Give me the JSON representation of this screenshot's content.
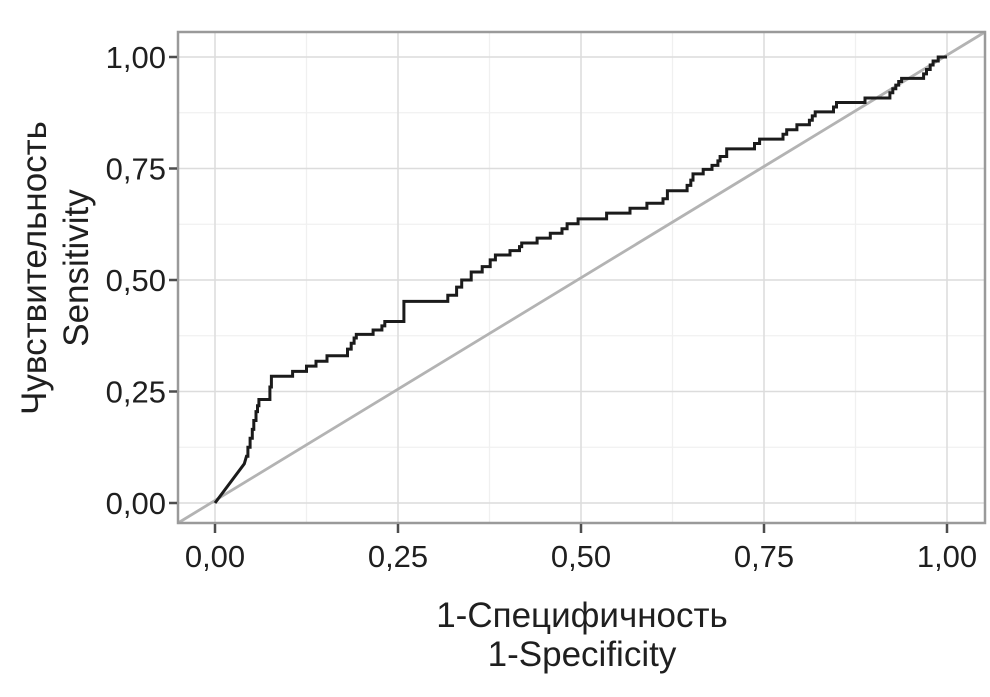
{
  "chart_data": {
    "type": "line",
    "subtype": "roc_curve",
    "title": "",
    "xlabel_ru": "1-Специфичность",
    "xlabel_en": "1-Specificity",
    "ylabel_ru": "Чувствительность",
    "ylabel_en": "Sensitivity",
    "x_tick_labels": [
      "0,00",
      "0,25",
      "0,50",
      "0,75",
      "1,00"
    ],
    "x_tick_values": [
      0,
      0.25,
      0.5,
      0.75,
      1
    ],
    "y_tick_labels": [
      "0,00",
      "0,25",
      "0,50",
      "0,75",
      "1,00"
    ],
    "y_tick_values": [
      0,
      0.25,
      0.5,
      0.75,
      1
    ],
    "minor_grid_values": [
      0.125,
      0.375,
      0.625,
      0.875
    ],
    "xlim": [
      -0.05,
      1.05
    ],
    "ylim": [
      -0.045,
      1.055
    ],
    "grid": "on",
    "legend_position": "none",
    "reference_line": {
      "name": "chance-diagonal",
      "from": [
        0,
        0
      ],
      "to": [
        1,
        1
      ]
    },
    "series": [
      {
        "name": "ROC curve",
        "points": [
          [
            0.0,
            0.0
          ],
          [
            0.04,
            0.088
          ],
          [
            0.043,
            0.105
          ],
          [
            0.045,
            0.105
          ],
          [
            0.045,
            0.125
          ],
          [
            0.048,
            0.125
          ],
          [
            0.048,
            0.145
          ],
          [
            0.051,
            0.145
          ],
          [
            0.051,
            0.165
          ],
          [
            0.053,
            0.165
          ],
          [
            0.053,
            0.185
          ],
          [
            0.056,
            0.185
          ],
          [
            0.056,
            0.205
          ],
          [
            0.058,
            0.205
          ],
          [
            0.058,
            0.218
          ],
          [
            0.06,
            0.218
          ],
          [
            0.06,
            0.232
          ],
          [
            0.075,
            0.232
          ],
          [
            0.075,
            0.26
          ],
          [
            0.077,
            0.26
          ],
          [
            0.077,
            0.284
          ],
          [
            0.106,
            0.284
          ],
          [
            0.106,
            0.295
          ],
          [
            0.125,
            0.295
          ],
          [
            0.125,
            0.307
          ],
          [
            0.138,
            0.307
          ],
          [
            0.138,
            0.318
          ],
          [
            0.153,
            0.318
          ],
          [
            0.153,
            0.33
          ],
          [
            0.181,
            0.33
          ],
          [
            0.181,
            0.345
          ],
          [
            0.186,
            0.345
          ],
          [
            0.186,
            0.358
          ],
          [
            0.19,
            0.358
          ],
          [
            0.19,
            0.37
          ],
          [
            0.193,
            0.37
          ],
          [
            0.193,
            0.378
          ],
          [
            0.216,
            0.378
          ],
          [
            0.216,
            0.388
          ],
          [
            0.228,
            0.388
          ],
          [
            0.228,
            0.397
          ],
          [
            0.232,
            0.397
          ],
          [
            0.232,
            0.407
          ],
          [
            0.258,
            0.407
          ],
          [
            0.258,
            0.452
          ],
          [
            0.318,
            0.452
          ],
          [
            0.318,
            0.466
          ],
          [
            0.33,
            0.466
          ],
          [
            0.33,
            0.484
          ],
          [
            0.337,
            0.484
          ],
          [
            0.337,
            0.5
          ],
          [
            0.35,
            0.5
          ],
          [
            0.35,
            0.518
          ],
          [
            0.365,
            0.518
          ],
          [
            0.365,
            0.53
          ],
          [
            0.376,
            0.53
          ],
          [
            0.376,
            0.545
          ],
          [
            0.383,
            0.545
          ],
          [
            0.383,
            0.556
          ],
          [
            0.403,
            0.556
          ],
          [
            0.403,
            0.566
          ],
          [
            0.416,
            0.566
          ],
          [
            0.416,
            0.575
          ],
          [
            0.419,
            0.575
          ],
          [
            0.419,
            0.583
          ],
          [
            0.44,
            0.583
          ],
          [
            0.44,
            0.594
          ],
          [
            0.458,
            0.594
          ],
          [
            0.458,
            0.605
          ],
          [
            0.474,
            0.605
          ],
          [
            0.474,
            0.615
          ],
          [
            0.481,
            0.615
          ],
          [
            0.481,
            0.626
          ],
          [
            0.496,
            0.626
          ],
          [
            0.496,
            0.637
          ],
          [
            0.535,
            0.637
          ],
          [
            0.535,
            0.65
          ],
          [
            0.567,
            0.65
          ],
          [
            0.567,
            0.661
          ],
          [
            0.59,
            0.661
          ],
          [
            0.59,
            0.672
          ],
          [
            0.612,
            0.672
          ],
          [
            0.612,
            0.682
          ],
          [
            0.618,
            0.682
          ],
          [
            0.618,
            0.7
          ],
          [
            0.645,
            0.7
          ],
          [
            0.645,
            0.712
          ],
          [
            0.65,
            0.712
          ],
          [
            0.65,
            0.724
          ],
          [
            0.653,
            0.724
          ],
          [
            0.653,
            0.738
          ],
          [
            0.667,
            0.738
          ],
          [
            0.667,
            0.748
          ],
          [
            0.679,
            0.748
          ],
          [
            0.679,
            0.757
          ],
          [
            0.687,
            0.757
          ],
          [
            0.687,
            0.767
          ],
          [
            0.69,
            0.767
          ],
          [
            0.69,
            0.777
          ],
          [
            0.699,
            0.777
          ],
          [
            0.699,
            0.794
          ],
          [
            0.737,
            0.794
          ],
          [
            0.737,
            0.806
          ],
          [
            0.744,
            0.806
          ],
          [
            0.744,
            0.816
          ],
          [
            0.776,
            0.816
          ],
          [
            0.776,
            0.827
          ],
          [
            0.781,
            0.827
          ],
          [
            0.781,
            0.837
          ],
          [
            0.795,
            0.837
          ],
          [
            0.795,
            0.848
          ],
          [
            0.812,
            0.848
          ],
          [
            0.812,
            0.858
          ],
          [
            0.816,
            0.858
          ],
          [
            0.816,
            0.868
          ],
          [
            0.82,
            0.868
          ],
          [
            0.82,
            0.877
          ],
          [
            0.845,
            0.877
          ],
          [
            0.845,
            0.888
          ],
          [
            0.849,
            0.888
          ],
          [
            0.849,
            0.898
          ],
          [
            0.888,
            0.898
          ],
          [
            0.888,
            0.908
          ],
          [
            0.922,
            0.908
          ],
          [
            0.922,
            0.92
          ],
          [
            0.926,
            0.92
          ],
          [
            0.926,
            0.929
          ],
          [
            0.93,
            0.929
          ],
          [
            0.93,
            0.937
          ],
          [
            0.934,
            0.937
          ],
          [
            0.934,
            0.945
          ],
          [
            0.938,
            0.945
          ],
          [
            0.938,
            0.952
          ],
          [
            0.968,
            0.952
          ],
          [
            0.968,
            0.962
          ],
          [
            0.972,
            0.962
          ],
          [
            0.972,
            0.972
          ],
          [
            0.977,
            0.972
          ],
          [
            0.977,
            0.982
          ],
          [
            0.981,
            0.982
          ],
          [
            0.981,
            0.991
          ],
          [
            0.988,
            0.991
          ],
          [
            0.988,
            1.0
          ],
          [
            1.0,
            1.0
          ]
        ]
      }
    ]
  },
  "colors": {
    "curve": "#1b1b1b",
    "diagonal": "#b3b3b3",
    "grid_major": "#dcdcdc",
    "grid_minor": "#f0f0f0",
    "panel_border": "#9a9a9a",
    "tick": "#4d4d4d",
    "text": "#1f1f1f",
    "background": "#ffffff"
  }
}
